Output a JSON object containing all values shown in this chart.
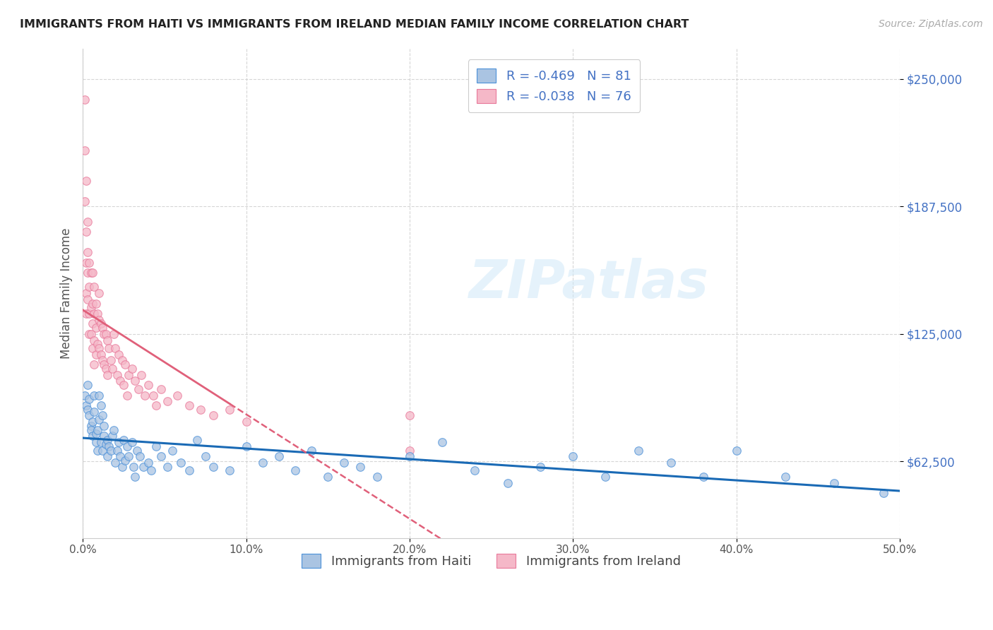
{
  "title": "IMMIGRANTS FROM HAITI VS IMMIGRANTS FROM IRELAND MEDIAN FAMILY INCOME CORRELATION CHART",
  "source": "Source: ZipAtlas.com",
  "ylabel": "Median Family Income",
  "xlim": [
    0.0,
    0.5
  ],
  "ylim": [
    25000,
    265000
  ],
  "haiti_color": "#aac4e2",
  "ireland_color": "#f5b8c8",
  "haiti_edge_color": "#4a90d9",
  "ireland_edge_color": "#e8789a",
  "haiti_line_color": "#1a6ab5",
  "ireland_line_color": "#e0607a",
  "legend_haiti_label": "Immigrants from Haiti",
  "legend_ireland_label": "Immigrants from Ireland",
  "haiti_R": -0.469,
  "haiti_N": 81,
  "ireland_R": -0.038,
  "ireland_N": 76,
  "watermark": "ZIPatlas",
  "haiti_scatter_x": [
    0.001,
    0.002,
    0.003,
    0.003,
    0.004,
    0.004,
    0.005,
    0.005,
    0.006,
    0.006,
    0.007,
    0.007,
    0.008,
    0.008,
    0.009,
    0.009,
    0.01,
    0.01,
    0.011,
    0.011,
    0.012,
    0.012,
    0.013,
    0.013,
    0.014,
    0.015,
    0.015,
    0.016,
    0.017,
    0.018,
    0.019,
    0.02,
    0.021,
    0.022,
    0.023,
    0.024,
    0.025,
    0.026,
    0.027,
    0.028,
    0.03,
    0.031,
    0.032,
    0.033,
    0.035,
    0.037,
    0.04,
    0.042,
    0.045,
    0.048,
    0.052,
    0.055,
    0.06,
    0.065,
    0.07,
    0.075,
    0.08,
    0.09,
    0.1,
    0.11,
    0.12,
    0.13,
    0.14,
    0.15,
    0.16,
    0.17,
    0.18,
    0.2,
    0.22,
    0.24,
    0.26,
    0.28,
    0.3,
    0.32,
    0.34,
    0.36,
    0.38,
    0.4,
    0.43,
    0.46,
    0.49
  ],
  "haiti_scatter_y": [
    95000,
    90000,
    88000,
    100000,
    85000,
    93000,
    80000,
    78000,
    82000,
    75000,
    95000,
    87000,
    72000,
    76000,
    78000,
    68000,
    95000,
    83000,
    90000,
    72000,
    85000,
    68000,
    75000,
    80000,
    71000,
    65000,
    73000,
    70000,
    68000,
    75000,
    78000,
    62000,
    68000,
    72000,
    65000,
    60000,
    73000,
    63000,
    70000,
    65000,
    72000,
    60000,
    55000,
    68000,
    65000,
    60000,
    62000,
    58000,
    70000,
    65000,
    60000,
    68000,
    62000,
    58000,
    73000,
    65000,
    60000,
    58000,
    70000,
    62000,
    65000,
    58000,
    68000,
    55000,
    62000,
    60000,
    55000,
    65000,
    72000,
    58000,
    52000,
    60000,
    65000,
    55000,
    68000,
    62000,
    55000,
    68000,
    55000,
    52000,
    47000
  ],
  "ireland_scatter_x": [
    0.001,
    0.001,
    0.001,
    0.002,
    0.002,
    0.002,
    0.002,
    0.002,
    0.003,
    0.003,
    0.003,
    0.003,
    0.004,
    0.004,
    0.004,
    0.004,
    0.005,
    0.005,
    0.005,
    0.006,
    0.006,
    0.006,
    0.006,
    0.007,
    0.007,
    0.007,
    0.007,
    0.008,
    0.008,
    0.008,
    0.009,
    0.009,
    0.01,
    0.01,
    0.01,
    0.011,
    0.011,
    0.012,
    0.012,
    0.013,
    0.013,
    0.014,
    0.014,
    0.015,
    0.015,
    0.016,
    0.017,
    0.018,
    0.019,
    0.02,
    0.021,
    0.022,
    0.023,
    0.024,
    0.025,
    0.026,
    0.027,
    0.028,
    0.03,
    0.032,
    0.034,
    0.036,
    0.038,
    0.04,
    0.043,
    0.045,
    0.048,
    0.052,
    0.058,
    0.065,
    0.072,
    0.08,
    0.09,
    0.1,
    0.2,
    0.2
  ],
  "ireland_scatter_y": [
    240000,
    215000,
    190000,
    200000,
    175000,
    160000,
    145000,
    135000,
    180000,
    165000,
    155000,
    142000,
    160000,
    148000,
    135000,
    125000,
    155000,
    138000,
    125000,
    155000,
    140000,
    130000,
    118000,
    148000,
    135000,
    122000,
    110000,
    140000,
    128000,
    115000,
    135000,
    120000,
    145000,
    132000,
    118000,
    130000,
    115000,
    128000,
    112000,
    125000,
    110000,
    125000,
    108000,
    122000,
    105000,
    118000,
    112000,
    108000,
    125000,
    118000,
    105000,
    115000,
    102000,
    112000,
    100000,
    110000,
    95000,
    105000,
    108000,
    102000,
    98000,
    105000,
    95000,
    100000,
    95000,
    90000,
    98000,
    92000,
    95000,
    90000,
    88000,
    85000,
    88000,
    82000,
    85000,
    68000
  ]
}
